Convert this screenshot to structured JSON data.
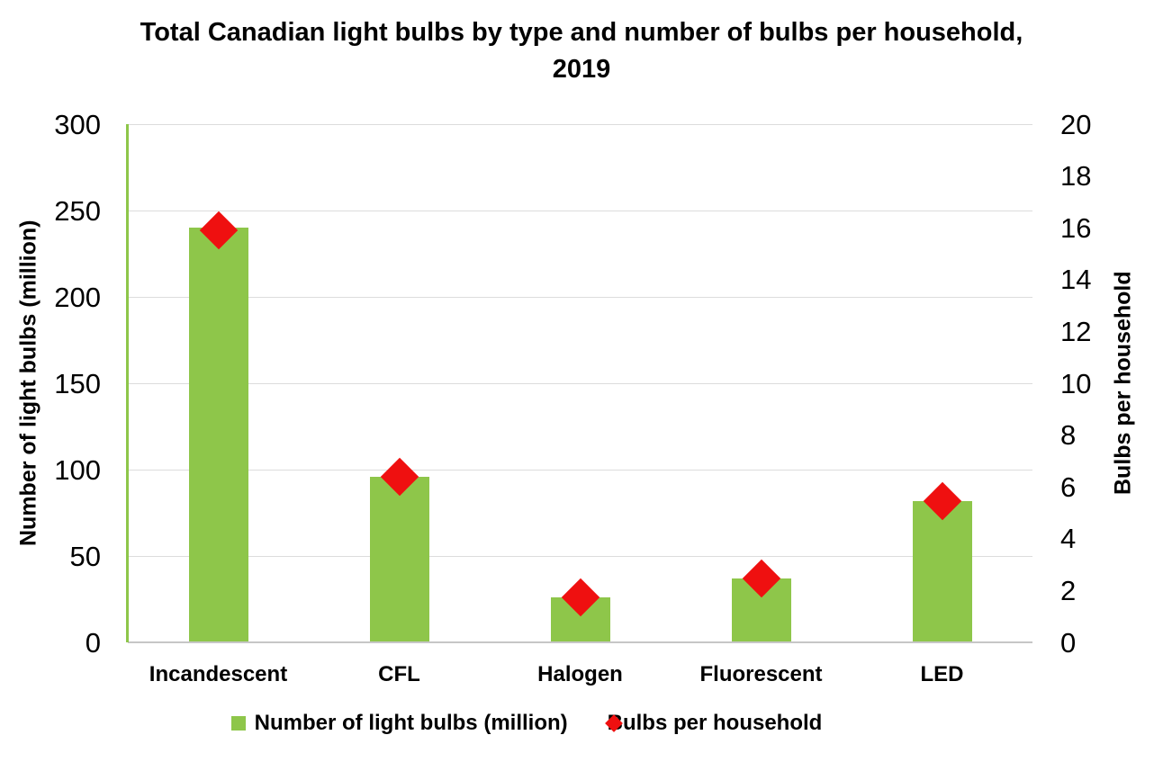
{
  "title": "Total Canadian light bulbs by type and number of bulbs per household, 2019",
  "chart_data": {
    "type": "combo",
    "subtype": "bar + scatter (diamond markers), dual y-axes",
    "categories": [
      "Incandescent",
      "CFL",
      "Halogen",
      "Fluorescent",
      "LED"
    ],
    "series": [
      {
        "name": "Number of light bulbs (million)",
        "type": "bar",
        "axis": "left",
        "values": [
          240,
          96,
          26,
          37,
          82
        ]
      },
      {
        "name": "Bulbs per household",
        "type": "scatter",
        "marker": "diamond",
        "axis": "right",
        "values": [
          15.9,
          6.4,
          1.75,
          2.45,
          5.45
        ]
      }
    ],
    "left_axis": {
      "label": "Number of light bulbs (million)",
      "min": 0,
      "max": 300,
      "step": 50,
      "ticks": [
        "300",
        "250",
        "200",
        "150",
        "100",
        "50",
        "0"
      ]
    },
    "right_axis": {
      "label": "Bulbs per household",
      "min": 0,
      "max": 20,
      "step": 2,
      "ticks": [
        "20",
        "18",
        "16",
        "14",
        "12",
        "10",
        "8",
        "6",
        "4",
        "2",
        "0"
      ]
    },
    "grid": true,
    "legend_position": "bottom"
  },
  "colors": {
    "bar_green": "#8EC64A",
    "diamond_red": "#EF1010",
    "axis_line_green": "#8EC64A",
    "gridline": "#DCDCDC",
    "x_axis_line": "#C6C6C6",
    "text": "#000000",
    "background": "#FFFFFF"
  }
}
